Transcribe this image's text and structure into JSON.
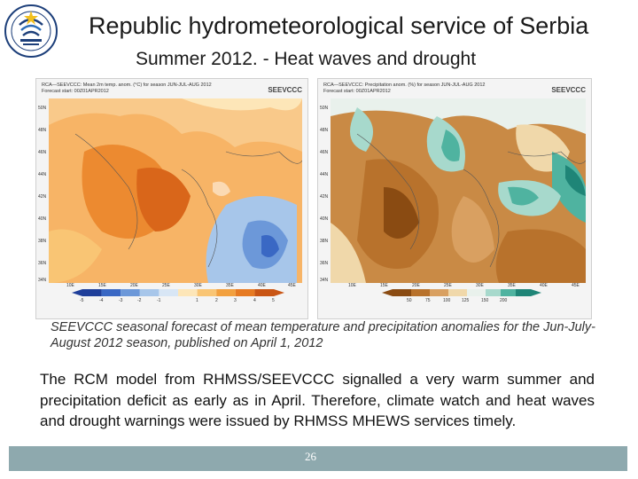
{
  "header": {
    "title": "Republic hydrometeorological service of Serbia",
    "subtitle": "Summer 2012. - Heat waves and drought"
  },
  "logo": {
    "text": "RHMZ SRBIJE"
  },
  "maps": {
    "left": {
      "line1": "RCA—SEEVCCC: Mean 2m temp. anom. (°C) for season JUN-JUL-AUG 2012",
      "line2": "Forecast start: 00Z01APR2012",
      "brand": "SEEVCCC",
      "lon_ticks": [
        "10E",
        "15E",
        "20E",
        "25E",
        "30E",
        "35E",
        "40E",
        "45E"
      ],
      "lat_ticks": [
        "50N",
        "48N",
        "46N",
        "44N",
        "42N",
        "40N",
        "38N",
        "36N",
        "34N"
      ],
      "colorbar_labels": [
        "-5",
        "-4",
        "-3",
        "-2",
        "-1",
        "1",
        "2",
        "3",
        "4",
        "5"
      ]
    },
    "right": {
      "line1": "RCA—SEEVCCC: Precipitation anom. (%) for season JUN-JUL-AUG 2012",
      "line2": "Forecast start: 00Z01APR2012",
      "brand": "SEEVCCC",
      "lon_ticks": [
        "10E",
        "15E",
        "20E",
        "25E",
        "30E",
        "35E",
        "40E",
        "45E"
      ],
      "lat_ticks": [
        "50N",
        "48N",
        "46N",
        "44N",
        "42N",
        "40N",
        "38N",
        "36N",
        "34N"
      ],
      "colorbar_labels": [
        "50",
        "75",
        "100",
        "125",
        "150",
        "200"
      ]
    }
  },
  "caption": "SEEVCCC seasonal forecast of mean temperature and precipitation anomalies for the Jun-July-August 2012 season, published on April 1, 2012",
  "body": "The RCM model from RHMSS/SEEVCCC signalled a very warm summer and precipitation deficit as early as in April. Therefore, climate watch and heat waves and drought warnings were issued by RHMSS MHEWS services timely.",
  "footer": {
    "page_number": "26"
  },
  "colors": {
    "temp_scale": [
      "#1f3f9a",
      "#3a68c4",
      "#6c98d9",
      "#a7c6ea",
      "#d8e6f5",
      "#fde6b8",
      "#f9c574",
      "#f2a03e",
      "#e67a22",
      "#c95514"
    ],
    "precip_scale": [
      "#8a4b12",
      "#b8722c",
      "#d9a061",
      "#f0d8aa",
      "#e9f1ec",
      "#a7d9cc",
      "#4fb3a0",
      "#1f8577"
    ],
    "footer_bar": "#8ea9ae"
  }
}
